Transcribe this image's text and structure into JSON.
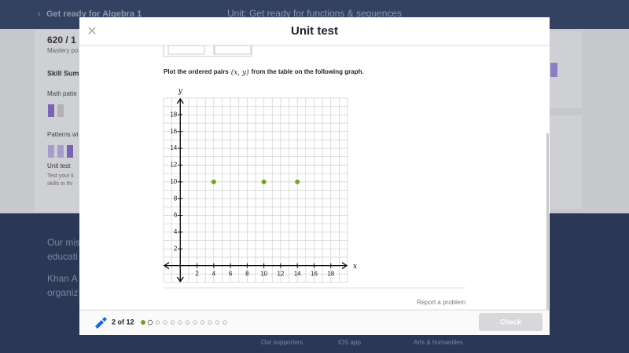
{
  "nav": {
    "back": "Get ready for Algebra 1",
    "unit": "Unit: Get ready for functions & sequences"
  },
  "background": {
    "mastery_points": "620 / 1",
    "mastery_caption": "Mastery po",
    "skill_summary": "Skill Summ",
    "skill1": "Math patte",
    "skill2": "Patterns wi",
    "unit_test": "Unit test",
    "unit_test_desc1": "Test your k",
    "unit_test_desc2": "skills in thi",
    "mission1": "Our mis",
    "mission2": "educati",
    "mission3": "Khan A",
    "mission4": "organiz",
    "links": [
      "Our supporters",
      "iOS app",
      "Arts & humanities"
    ]
  },
  "modal": {
    "title": "Unit test",
    "question": [
      "Plot the ordered pairs",
      "(x, y)",
      "from the table on the following graph."
    ],
    "report": "Report a problem",
    "progress": "2 of 12",
    "check": "Check"
  },
  "chart_data": {
    "type": "scatter",
    "x_label": "x",
    "y_label": "y",
    "xlim": [
      -2,
      20
    ],
    "ylim": [
      -2,
      20
    ],
    "xticks": [
      2,
      4,
      6,
      8,
      10,
      12,
      14,
      16,
      18
    ],
    "yticks": [
      2,
      4,
      6,
      8,
      10,
      12,
      14,
      16,
      18
    ],
    "grid": true,
    "grid_step": 1,
    "color": "#6fa71e",
    "x": [
      4,
      10,
      14
    ],
    "y": [
      10,
      10,
      10
    ]
  }
}
